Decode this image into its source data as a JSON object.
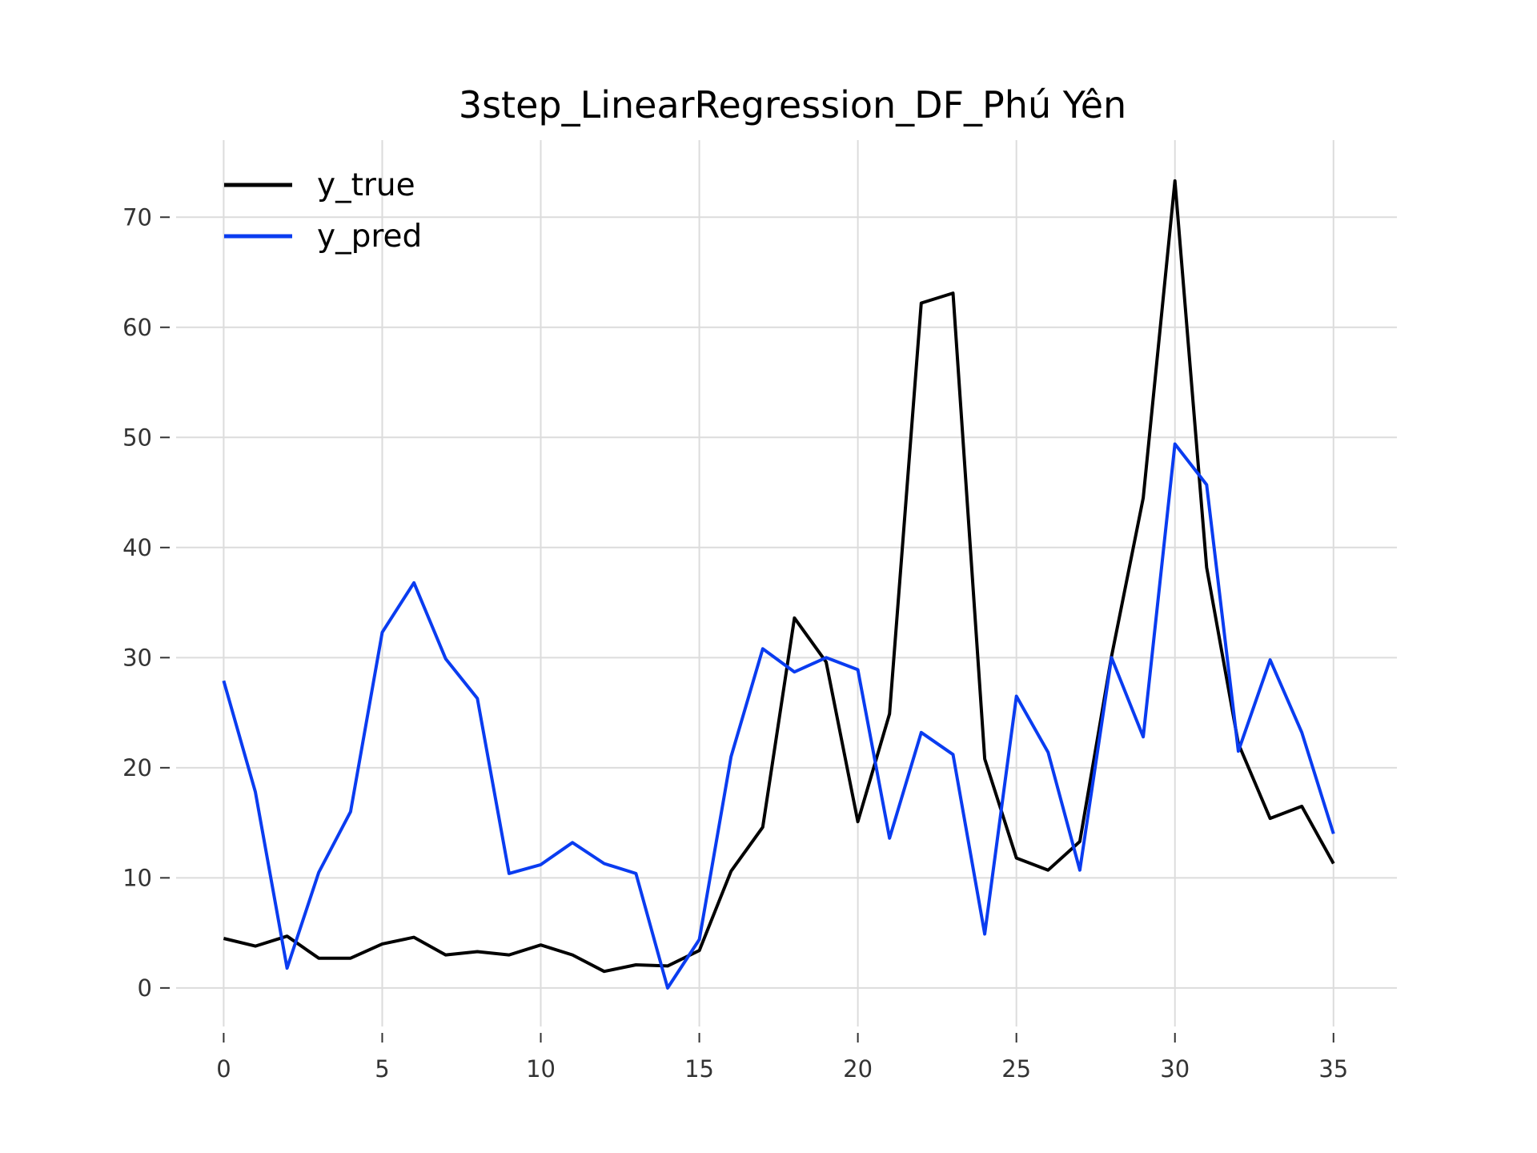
{
  "chart_data": {
    "type": "line",
    "title": "3step_LinearRegression_DF_Phú Yên",
    "xlabel": "",
    "ylabel": "",
    "x": [
      0,
      1,
      2,
      3,
      4,
      5,
      6,
      7,
      8,
      9,
      10,
      11,
      12,
      13,
      14,
      15,
      16,
      17,
      18,
      19,
      20,
      21,
      22,
      23,
      24,
      25,
      26,
      27,
      28,
      29,
      30,
      31,
      32,
      33,
      34,
      35
    ],
    "xlim": [
      -1.5,
      37
    ],
    "ylim": [
      -3.5,
      77
    ],
    "xticks": [
      0,
      5,
      10,
      15,
      20,
      25,
      30,
      35
    ],
    "yticks": [
      0,
      10,
      20,
      30,
      40,
      50,
      60,
      70
    ],
    "grid": true,
    "legend_position": "top-left",
    "series": [
      {
        "name": "y_true",
        "color": "#000000",
        "values": [
          4.5,
          3.8,
          4.7,
          2.7,
          2.7,
          4.0,
          4.6,
          3.0,
          3.3,
          3.0,
          3.9,
          3.0,
          1.5,
          2.1,
          2.0,
          3.4,
          10.6,
          14.6,
          33.6,
          29.6,
          15.1,
          24.9,
          62.2,
          63.1,
          20.8,
          11.8,
          10.7,
          13.3,
          30.1,
          44.5,
          73.3,
          38.2,
          22.2,
          15.4,
          16.5,
          11.3
        ]
      },
      {
        "name": "y_pred",
        "color": "#0a3cf0",
        "values": [
          27.9,
          17.8,
          1.8,
          10.5,
          16.0,
          32.3,
          36.8,
          29.9,
          26.3,
          10.4,
          11.2,
          13.2,
          11.3,
          10.4,
          0.0,
          4.4,
          21.0,
          30.8,
          28.7,
          30.0,
          28.9,
          13.6,
          23.2,
          21.2,
          4.9,
          26.5,
          21.4,
          10.7,
          30.0,
          22.8,
          49.4,
          45.7,
          21.5,
          29.8,
          23.2,
          14.0
        ]
      }
    ]
  }
}
